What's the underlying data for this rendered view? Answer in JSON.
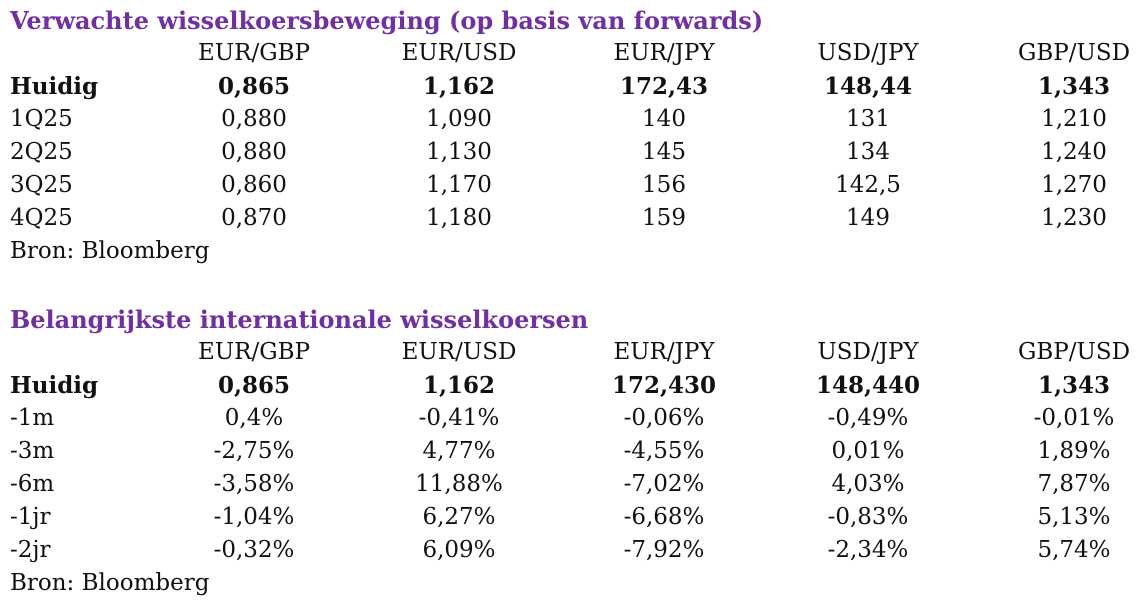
{
  "forecast": {
    "title": "Verwachte wisselkoersbeweging (op basis van forwards)",
    "columns": [
      "EUR/GBP",
      "EUR/USD",
      "EUR/JPY",
      "USD/JPY",
      "GBP/USD"
    ],
    "rows": [
      {
        "label": "Huidig",
        "values": [
          "0,865",
          "1,162",
          "172,43",
          "148,44",
          "1,343"
        ]
      },
      {
        "label": "1Q25",
        "values": [
          "0,880",
          "1,090",
          "140",
          "131",
          "1,210"
        ]
      },
      {
        "label": "2Q25",
        "values": [
          "0,880",
          "1,130",
          "145",
          "134",
          "1,240"
        ]
      },
      {
        "label": "3Q25",
        "values": [
          "0,860",
          "1,170",
          "156",
          "142,5",
          "1,270"
        ]
      },
      {
        "label": "4Q25",
        "values": [
          "0,870",
          "1,180",
          "159",
          "149",
          "1,230"
        ]
      }
    ],
    "source": "Bron: Bloomberg"
  },
  "international": {
    "title": "Belangrijkste internationale wisselkoersen",
    "columns": [
      "EUR/GBP",
      "EUR/USD",
      "EUR/JPY",
      "USD/JPY",
      "GBP/USD"
    ],
    "rows": [
      {
        "label": "Huidig",
        "values": [
          "0,865",
          "1,162",
          "172,430",
          "148,440",
          "1,343"
        ]
      },
      {
        "label": "-1m",
        "values": [
          "0,4%",
          "-0,41%",
          "-0,06%",
          "-0,49%",
          "-0,01%"
        ]
      },
      {
        "label": "-3m",
        "values": [
          "-2,75%",
          "4,77%",
          "-4,55%",
          "0,01%",
          "1,89%"
        ]
      },
      {
        "label": "-6m",
        "values": [
          "-3,58%",
          "11,88%",
          "-7,02%",
          "4,03%",
          "7,87%"
        ]
      },
      {
        "label": "-1jr",
        "values": [
          "-1,04%",
          "6,27%",
          "-6,68%",
          "-0,83%",
          "5,13%"
        ]
      },
      {
        "label": "-2jr",
        "values": [
          "-0,32%",
          "6,09%",
          "-7,92%",
          "-2,34%",
          "5,74%"
        ]
      }
    ],
    "source": "Bron: Bloomberg"
  },
  "colors": {
    "title": "#7030a0",
    "text": "#111111"
  }
}
